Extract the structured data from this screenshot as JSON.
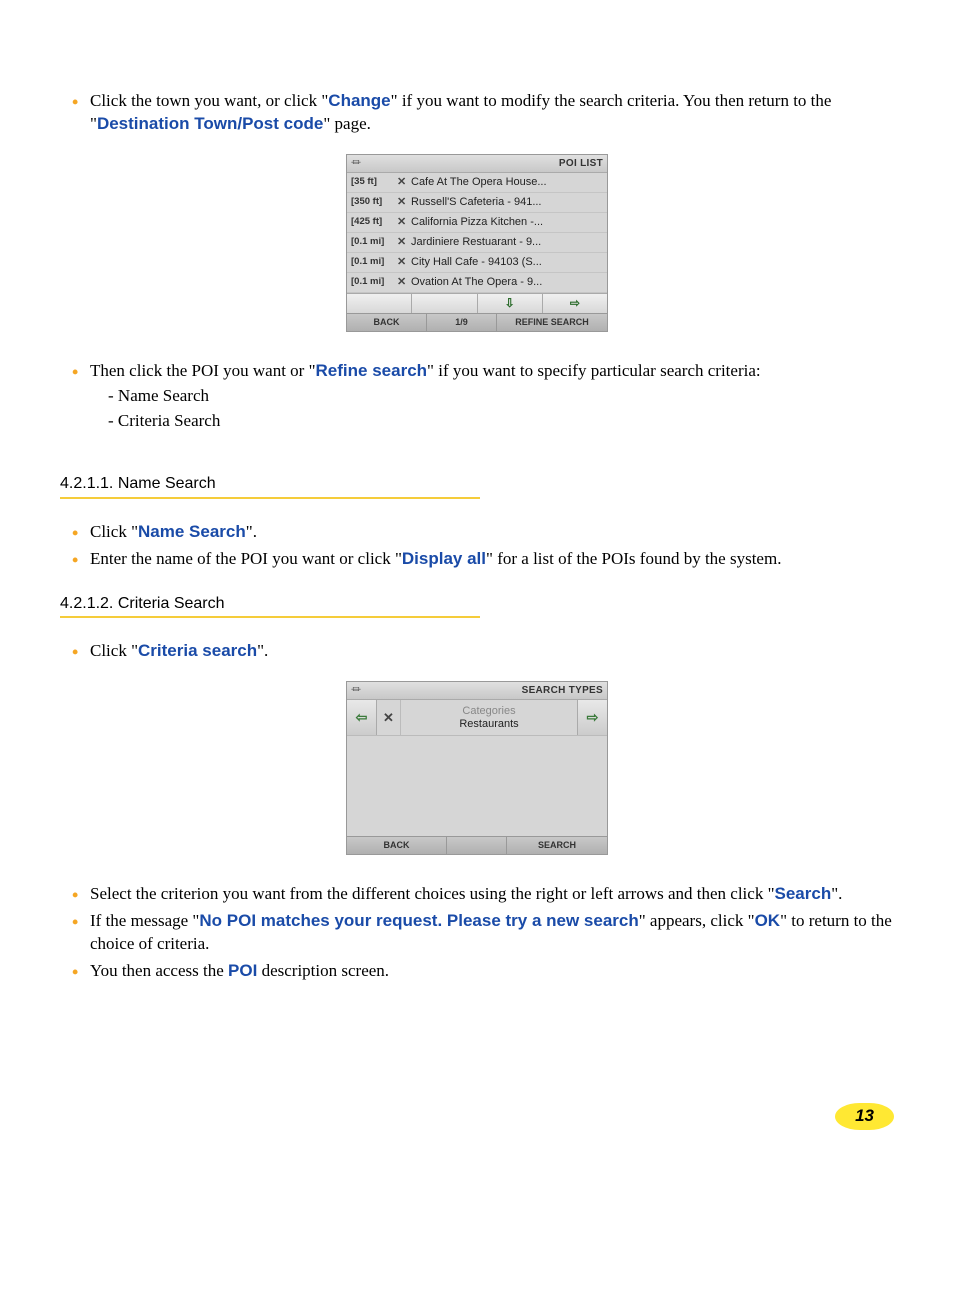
{
  "para1": {
    "pre": "Click the town you want, or click \"",
    "change": "Change",
    "mid": "\" if you want to modify the search criteria. You then return to the \"",
    "dest": "Destination Town/Post code",
    "post": "\" page."
  },
  "poiScreen": {
    "title": "POI LIST",
    "rows": [
      {
        "dist": "[35 ft]",
        "name": "Cafe At The Opera House..."
      },
      {
        "dist": "[350 ft]",
        "name": "Russell'S Cafeteria - 941..."
      },
      {
        "dist": "[425 ft]",
        "name": "California Pizza Kitchen -..."
      },
      {
        "dist": "[0.1 mi]",
        "name": "Jardiniere Restuarant - 9..."
      },
      {
        "dist": "[0.1 mi]",
        "name": "City Hall Cafe - 94103 (S..."
      },
      {
        "dist": "[0.1 mi]",
        "name": "Ovation At The Opera - 9..."
      }
    ],
    "footer": {
      "back": "BACK",
      "page": "1/9",
      "refine": "REFINE SEARCH"
    }
  },
  "para2": {
    "pre": "Then click the POI you want or \"",
    "refine": "Refine search",
    "post": "\" if you want to specify particular search criteria:",
    "sub1": "Name Search",
    "sub2": "Criteria Search"
  },
  "heading1": "4.2.1.1. Name Search",
  "para3": {
    "pre": "Click \"",
    "name": "Name Search",
    "post": "\"."
  },
  "para4": {
    "pre": "Enter the name of the POI you want or click \"",
    "display": "Display all",
    "post": "\" for a list of the POIs found by the system."
  },
  "heading2": "4.2.1.2. Criteria Search",
  "para5": {
    "pre": "Click \"",
    "crit": "Criteria search",
    "post": "\"."
  },
  "stScreen": {
    "title": "SEARCH TYPES",
    "catLabel": "Categories",
    "catValue": "Restaurants",
    "footer": {
      "back": "BACK",
      "search": "SEARCH"
    }
  },
  "para6": {
    "pre": "Select the criterion you want from the different choices using the right or left arrows and then click \"",
    "search": "Search",
    "post": "\"."
  },
  "para7": {
    "pre": "If the message \"",
    "msg": "No POI matches your request. Please try a new search",
    "mid": "\" appears, click \"",
    "ok": "OK",
    "post": "\" to return to the choice of criteria."
  },
  "para8": {
    "pre": "You then access the ",
    "poi": "POI",
    "post": " description screen."
  },
  "pageNum": "13",
  "arrows": {
    "left": "⇦",
    "down": "⇩",
    "right": "⇨"
  },
  "colors": {
    "bullet": "#f5a623",
    "emphasis": "#1a4ba8",
    "underline": "#f5cc3a",
    "badge": "#ffe833"
  }
}
